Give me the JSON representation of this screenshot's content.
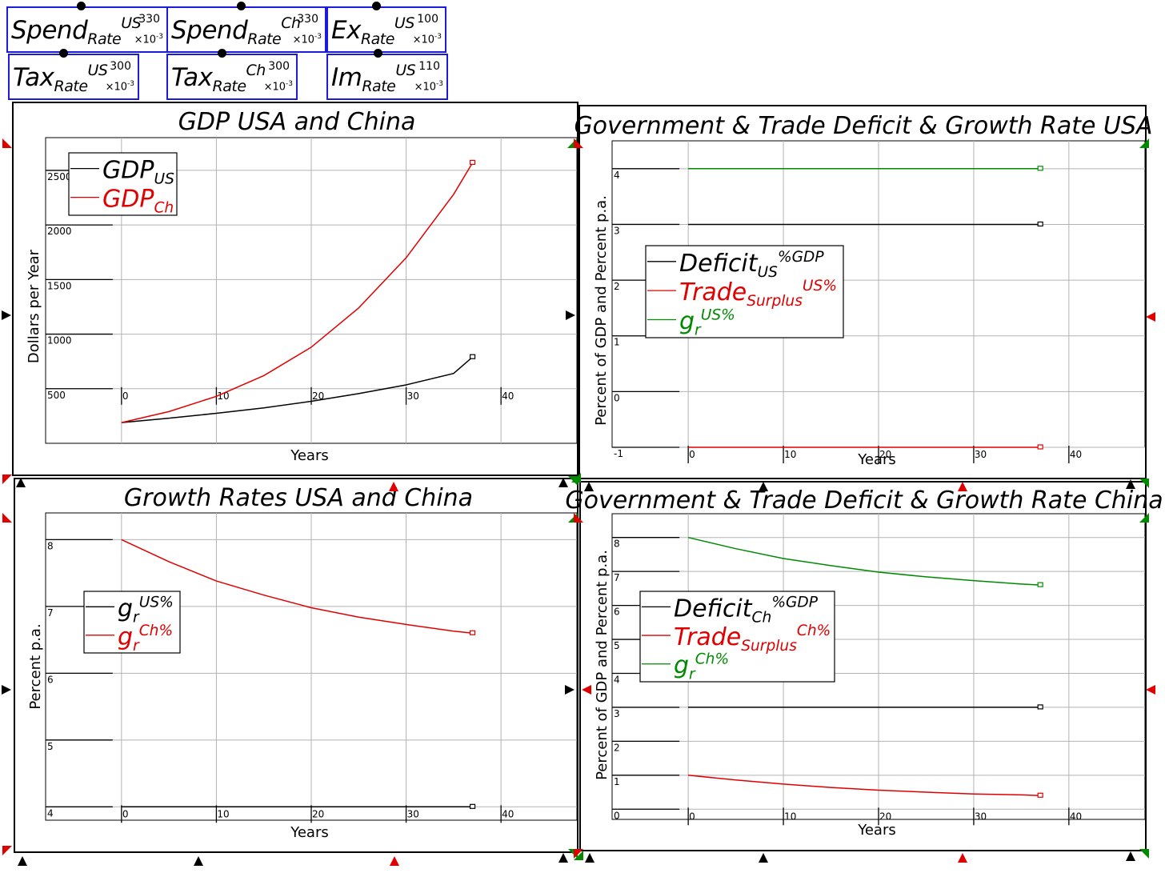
{
  "params": [
    {
      "base": "Spend",
      "sub": "Rate",
      "sup": "Ch",
      "value": "330",
      "scale": "×10",
      "exp": "-3",
      "id": "spend-rate-ch"
    },
    {
      "base": "Spend",
      "sub": "Rate",
      "sup": "US",
      "value": "330",
      "scale": "×10",
      "exp": "-3",
      "id": "spend-rate-us"
    },
    {
      "base": "Ex",
      "sub": "Rate",
      "sup": "US",
      "value": "100",
      "scale": "×10",
      "exp": "-3",
      "id": "ex-rate-us"
    },
    {
      "base": "Tax",
      "sub": "Rate",
      "sup": "US",
      "value": "300",
      "scale": "×10",
      "exp": "-3",
      "id": "tax-rate-us"
    },
    {
      "base": "Tax",
      "sub": "Rate",
      "sup": "Ch",
      "value": "300",
      "scale": "×10",
      "exp": "-3",
      "id": "tax-rate-ch"
    },
    {
      "base": "Im",
      "sub": "Rate",
      "sup": "US",
      "value": "110",
      "scale": "×10",
      "exp": "-3",
      "id": "im-rate-us"
    }
  ],
  "colors": {
    "black": "#000000",
    "red": "#e00000",
    "green": "#008a00",
    "param_border": "#1b1bd9"
  },
  "chart_data": [
    {
      "type": "line",
      "title": "GDP USA and China",
      "xlabel": "Years",
      "ylabel": "Dollars per Year",
      "xlim": [
        -8,
        48
      ],
      "ylim": [
        0,
        2800
      ],
      "xticks": [
        0,
        10,
        20,
        30,
        40
      ],
      "yticks": [
        500,
        1000,
        1500,
        2000,
        2500
      ],
      "x": [
        0,
        5,
        10,
        15,
        20,
        25,
        30,
        35,
        37
      ],
      "legend_position": "top-left",
      "series": [
        {
          "name": {
            "base": "GDP",
            "sub": "US",
            "sup": ""
          },
          "color": "#000000",
          "values": [
            190,
            230,
            275,
            325,
            385,
            455,
            535,
            640,
            790
          ]
        },
        {
          "name": {
            "base": "GDP",
            "sub": "Ch",
            "sup": ""
          },
          "color": "#e00000",
          "values": [
            190,
            290,
            430,
            620,
            880,
            1240,
            1700,
            2280,
            2570
          ]
        }
      ]
    },
    {
      "type": "line",
      "title": "Government & Trade Deficit & Growth Rate USA",
      "xlabel": "Years",
      "ylabel": "Percent of GDP and Percent p.a.",
      "xlim": [
        -8,
        48
      ],
      "ylim": [
        -1.0,
        4.5
      ],
      "xticks": [
        0,
        10,
        20,
        30,
        40
      ],
      "yticks": [
        -1,
        0,
        1,
        2,
        3,
        4
      ],
      "x": [
        0,
        37
      ],
      "legend_position": "middle-left",
      "series": [
        {
          "name": {
            "base": "Deficit",
            "sub": "US",
            "sup": "%GDP"
          },
          "color": "#000000",
          "values": [
            3,
            3
          ]
        },
        {
          "name": {
            "base": "Trade",
            "sub": "Surplus",
            "sup": "US%"
          },
          "color": "#e00000",
          "values": [
            -1,
            -1
          ]
        },
        {
          "name": {
            "base": "g",
            "sub": "r",
            "sup": "US%"
          },
          "color": "#008a00",
          "values": [
            4,
            4
          ]
        }
      ]
    },
    {
      "type": "line",
      "title": "Growth Rates USA and China",
      "xlabel": "Years",
      "ylabel": "Percent p.a.",
      "xlim": [
        -8,
        48
      ],
      "ylim": [
        3.8,
        8.4
      ],
      "xticks": [
        0,
        10,
        20,
        30,
        40
      ],
      "yticks": [
        4,
        5,
        6,
        7,
        8
      ],
      "x": [
        0,
        5,
        10,
        15,
        20,
        25,
        30,
        35,
        37
      ],
      "legend_position": "middle-left",
      "series": [
        {
          "name": {
            "base": "g",
            "sub": "r",
            "sup": "US%"
          },
          "color": "#000000",
          "values": [
            4,
            4,
            4,
            4,
            4,
            4,
            4,
            4,
            4
          ]
        },
        {
          "name": {
            "base": "g",
            "sub": "r",
            "sup": "Ch%"
          },
          "color": "#e00000",
          "values": [
            8.0,
            7.67,
            7.38,
            7.17,
            6.98,
            6.84,
            6.73,
            6.63,
            6.6
          ]
        }
      ]
    },
    {
      "type": "line",
      "title": "Government & Trade Deficit & Growth Rate China",
      "xlabel": "Years",
      "ylabel": "Percent of GDP and Percent p.a.",
      "xlim": [
        -8,
        48
      ],
      "ylim": [
        -0.3,
        8.7
      ],
      "xticks": [
        0,
        10,
        20,
        30,
        40
      ],
      "yticks": [
        0,
        1,
        2,
        3,
        4,
        5,
        6,
        7,
        8
      ],
      "x": [
        0,
        5,
        10,
        15,
        20,
        25,
        30,
        35,
        37
      ],
      "legend_position": "middle-left",
      "series": [
        {
          "name": {
            "base": "Deficit",
            "sub": "Ch",
            "sup": "%GDP"
          },
          "color": "#000000",
          "values": [
            3,
            3,
            3,
            3,
            3,
            3,
            3,
            3,
            3
          ]
        },
        {
          "name": {
            "base": "Trade",
            "sub": "Surplus",
            "sup": "Ch%"
          },
          "color": "#e00000",
          "values": [
            1.0,
            0.86,
            0.74,
            0.64,
            0.56,
            0.5,
            0.45,
            0.42,
            0.4
          ]
        },
        {
          "name": {
            "base": "g",
            "sub": "r",
            "sup": "Ch%"
          },
          "color": "#008a00",
          "values": [
            8.0,
            7.67,
            7.38,
            7.17,
            6.98,
            6.84,
            6.73,
            6.63,
            6.6
          ]
        }
      ]
    }
  ]
}
